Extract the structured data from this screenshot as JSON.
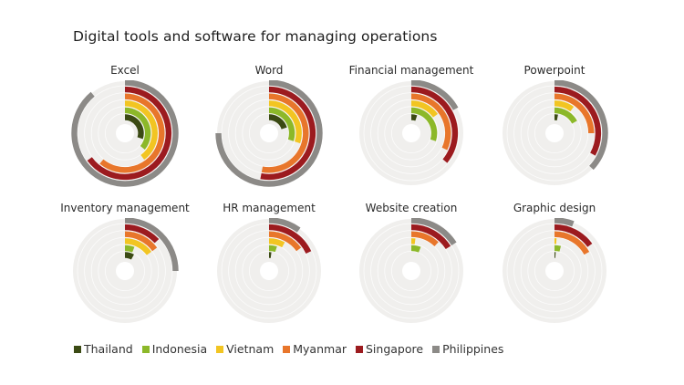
{
  "title": "Digital tools and software for managing operations",
  "legend": [
    {
      "label": "Thailand",
      "color": "#3b4a14"
    },
    {
      "label": "Indonesia",
      "color": "#8cb829"
    },
    {
      "label": "Vietnam",
      "color": "#f2c522"
    },
    {
      "label": "Myanmar",
      "color": "#e8762b"
    },
    {
      "label": "Singapore",
      "color": "#9c1b1f"
    },
    {
      "label": "Philippines",
      "color": "#8c8a87"
    }
  ],
  "chart_data": {
    "type": "radial-bar",
    "title": "Digital tools and software for managing operations",
    "series_order_inner_to_outer": [
      "Thailand",
      "Indonesia",
      "Vietnam",
      "Myanmar",
      "Singapore",
      "Philippines"
    ],
    "value_unit": "fraction of full circle (estimated share of firms)",
    "charts": [
      {
        "name": "Excel",
        "values": {
          "Thailand": 0.3,
          "Indonesia": 0.36,
          "Vietnam": 0.4,
          "Myanmar": 0.61,
          "Singapore": 0.65,
          "Philippines": 0.89
        }
      },
      {
        "name": "Word",
        "values": {
          "Thailand": 0.2,
          "Indonesia": 0.3,
          "Vietnam": 0.3,
          "Myanmar": 0.53,
          "Singapore": 0.53,
          "Philippines": 0.75
        }
      },
      {
        "name": "Financial management",
        "values": {
          "Thailand": 0.05,
          "Indonesia": 0.3,
          "Vietnam": 0.15,
          "Myanmar": 0.32,
          "Singapore": 0.36,
          "Philippines": 0.17
        }
      },
      {
        "name": "Powerpoint",
        "values": {
          "Thailand": 0.03,
          "Indonesia": 0.17,
          "Vietnam": 0.1,
          "Myanmar": 0.25,
          "Singapore": 0.33,
          "Philippines": 0.37
        }
      },
      {
        "name": "Inventory management",
        "values": {
          "Thailand": 0.08,
          "Indonesia": 0.06,
          "Vietnam": 0.15,
          "Myanmar": 0.15,
          "Singapore": 0.13,
          "Philippines": 0.25
        }
      },
      {
        "name": "HR management",
        "values": {
          "Thailand": 0.02,
          "Indonesia": 0.05,
          "Vietnam": 0.08,
          "Myanmar": 0.15,
          "Singapore": 0.18,
          "Philippines": 0.1
        }
      },
      {
        "name": "Website creation",
        "values": {
          "Thailand": 0.0,
          "Indonesia": 0.06,
          "Vietnam": 0.02,
          "Myanmar": 0.12,
          "Singapore": 0.16,
          "Philippines": 0.16
        }
      },
      {
        "name": "Graphic design",
        "values": {
          "Thailand": 0.01,
          "Indonesia": 0.04,
          "Vietnam": 0.01,
          "Myanmar": 0.17,
          "Singapore": 0.15,
          "Philippines": 0.06
        }
      }
    ],
    "legend_position": "bottom",
    "grid": false
  }
}
